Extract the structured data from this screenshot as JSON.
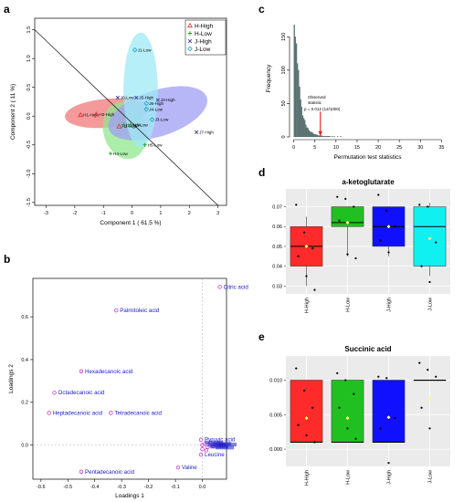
{
  "panel_letters": {
    "a": "a",
    "b": "b",
    "c": "c",
    "d": "d",
    "e": "e"
  },
  "chart_data": [
    {
      "panel": "a",
      "type": "scatter",
      "title": "",
      "xlabel": "Component 1 ( 61.5 %)",
      "ylabel": "Component 2 ( 11 %)",
      "xlim": [
        -3.4,
        3.3
      ],
      "ylim": [
        -1.55,
        1.7
      ],
      "xticks": [
        -3,
        -2,
        -1,
        0,
        1,
        2,
        3
      ],
      "yticks": [
        -1.5,
        -1.0,
        -0.5,
        0.0,
        0.5,
        1.0,
        1.5
      ],
      "legend_position": "top-right",
      "diagonal_line": [
        [
          -3.4,
          1.5
        ],
        [
          3.0,
          -1.55
        ]
      ],
      "ellipses": [
        {
          "group": "H-High",
          "color": "#f07878",
          "cx": -0.9,
          "cy": 0.05,
          "rx": 1.45,
          "ry": 0.25,
          "angle": -5
        },
        {
          "group": "H-Low",
          "color": "#8ee88e",
          "cx": -0.25,
          "cy": -0.25,
          "rx": 0.75,
          "ry": 0.5,
          "angle": -15
        },
        {
          "group": "J-High",
          "color": "#9f9ff5",
          "cx": 0.9,
          "cy": 0.05,
          "rx": 1.8,
          "ry": 0.4,
          "angle": -18
        },
        {
          "group": "J-Low",
          "color": "#9fe9f5",
          "cx": 0.3,
          "cy": 0.45,
          "rx": 0.6,
          "ry": 1.0,
          "angle": 0
        }
      ],
      "series": [
        {
          "name": "H-High",
          "marker": "triangle",
          "color": "#e03030",
          "points": [
            {
              "x": -1.8,
              "y": 0.02,
              "label": "H1-High"
            },
            {
              "x": -1.25,
              "y": 0.03,
              "label": "H2-High"
            },
            {
              "x": -0.45,
              "y": -0.18,
              "label": "H3-High"
            }
          ]
        },
        {
          "name": "H-Low",
          "marker": "plus",
          "color": "#20a020",
          "points": [
            {
              "x": -0.3,
              "y": -0.15,
              "label": "H1-Low"
            },
            {
              "x": -0.05,
              "y": -0.15,
              "label": "H3-Low"
            },
            {
              "x": -0.75,
              "y": -0.65,
              "label": "H4-Low"
            },
            {
              "x": 0.45,
              "y": -0.5,
              "label": "H5-Low"
            }
          ]
        },
        {
          "name": "J-High",
          "marker": "cross",
          "color": "#3a3a9a",
          "points": [
            {
              "x": -0.5,
              "y": 0.32,
              "label": "J6-Low"
            },
            {
              "x": 0.15,
              "y": 0.32,
              "label": "J5-High"
            },
            {
              "x": 0.9,
              "y": 0.28,
              "label": "J3-High"
            },
            {
              "x": 2.25,
              "y": -0.28,
              "label": "J7-High"
            }
          ]
        },
        {
          "name": "J-Low",
          "marker": "diamond",
          "color": "#20a0c0",
          "points": [
            {
              "x": 0.1,
              "y": 1.15,
              "label": "J1-Low"
            },
            {
              "x": 0.5,
              "y": 0.22,
              "label": "J6-High"
            },
            {
              "x": 0.5,
              "y": 0.12,
              "label": "J4-Low"
            },
            {
              "x": 0.7,
              "y": -0.06,
              "label": "J3-Low"
            }
          ]
        }
      ],
      "legend": [
        "H-High",
        "H-Low",
        "J-High",
        "J-Low"
      ]
    },
    {
      "panel": "b",
      "type": "scatter",
      "title": "",
      "xlabel": "Loadings 1",
      "ylabel": "Loadings 2",
      "xlim": [
        -0.63,
        0.09
      ],
      "ylim": [
        -0.16,
        0.78
      ],
      "xticks": [
        -0.6,
        -0.5,
        -0.4,
        -0.3,
        -0.2,
        -0.1,
        0.0
      ],
      "yticks": [
        0.0,
        0.2,
        0.4,
        0.6
      ],
      "points": [
        {
          "x": 0.065,
          "y": 0.74,
          "label": "Citric acid"
        },
        {
          "x": -0.32,
          "y": 0.63,
          "label": "Palmitoleic acid"
        },
        {
          "x": -0.45,
          "y": 0.345,
          "label": "Hexadecanoic acid"
        },
        {
          "x": -0.55,
          "y": 0.245,
          "label": "Octadecanoic acid"
        },
        {
          "x": -0.57,
          "y": 0.15,
          "label": "Heptadecanoic acid"
        },
        {
          "x": -0.34,
          "y": 0.15,
          "label": "Tetradecanoic acid"
        },
        {
          "x": -0.45,
          "y": -0.125,
          "label": "Pentadecanoic acid"
        },
        {
          "x": -0.09,
          "y": -0.105,
          "label": "Valine"
        },
        {
          "x": -0.005,
          "y": 0.025,
          "label": "Pyruvic acid"
        },
        {
          "x": -0.005,
          "y": -0.045,
          "label": "Leucine"
        },
        {
          "x": 0.0,
          "y": 0.0,
          "label": ""
        },
        {
          "x": 0.01,
          "y": 0.005,
          "label": ""
        },
        {
          "x": 0.02,
          "y": -0.01,
          "label": ""
        },
        {
          "x": 0.03,
          "y": 0.01,
          "label": ""
        },
        {
          "x": 0.04,
          "y": -0.005,
          "label": ""
        },
        {
          "x": 0.05,
          "y": 0.0,
          "label": ""
        },
        {
          "x": 0.06,
          "y": 0.008,
          "label": ""
        },
        {
          "x": 0.07,
          "y": -0.004,
          "label": ""
        },
        {
          "x": 0.015,
          "y": -0.025,
          "label": ""
        },
        {
          "x": 0.0,
          "y": -0.02,
          "label": ""
        }
      ]
    },
    {
      "panel": "c",
      "type": "bar",
      "title": "",
      "xlabel": "Permutation test statistics",
      "ylabel": "Frequency",
      "xlim": [
        -1,
        36
      ],
      "ylim": [
        0,
        175
      ],
      "xticks": [
        0,
        5,
        10,
        15,
        20,
        25,
        30,
        35
      ],
      "yticks": [
        0,
        50,
        100,
        150
      ],
      "bin_width": 0.25,
      "bin_start": 0.0,
      "frequencies": [
        168,
        150,
        140,
        110,
        100,
        75,
        56,
        45,
        32,
        28,
        25,
        18,
        14,
        13,
        10,
        8,
        7,
        7,
        5,
        4,
        4,
        3,
        3,
        2,
        2,
        2,
        2,
        1,
        1,
        1,
        1,
        1,
        1,
        1,
        1,
        0,
        1,
        0,
        1,
        0,
        0,
        1,
        0,
        0,
        1
      ],
      "observed_value": 6.3,
      "annotation": {
        "line1": "Observed",
        "line2": "statistic",
        "line3": "p = 0.012 (12/1000)"
      }
    },
    {
      "panel": "d",
      "type": "box",
      "title": "a-ketoglutarate",
      "xlabel": "",
      "ylabel": "",
      "ylim": [
        0.026,
        0.079
      ],
      "yticks": [
        0.03,
        0.04,
        0.05,
        0.06,
        0.07
      ],
      "ytick_labels": [
        "0.03",
        "0.04",
        "0.05",
        "0.06",
        "0.07"
      ],
      "categories": [
        "H-High",
        "H-Low",
        "J-High",
        "J-Low"
      ],
      "boxes": [
        {
          "name": "H-High",
          "color": "#ff2a2a",
          "q1": 0.04,
          "median": 0.05,
          "q3": 0.06,
          "whisker_low": 0.03,
          "whisker_high": 0.065,
          "mean": 0.05,
          "points": [
            0.071,
            0.057,
            0.049,
            0.045,
            0.035,
            0.028
          ]
        },
        {
          "name": "H-Low",
          "color": "#20c020",
          "q1": 0.06,
          "median": 0.062,
          "q3": 0.07,
          "whisker_low": 0.045,
          "whisker_high": 0.07,
          "mean": 0.062,
          "points": [
            0.075,
            0.074,
            0.07,
            0.063,
            0.046,
            0.044
          ]
        },
        {
          "name": "J-High",
          "color": "#1010ff",
          "q1": 0.05,
          "median": 0.06,
          "q3": 0.07,
          "whisker_low": 0.045,
          "whisker_high": 0.07,
          "mean": 0.06,
          "points": [
            0.076,
            0.068,
            0.06,
            0.053,
            0.047
          ]
        },
        {
          "name": "J-Low",
          "color": "#10f0f0",
          "q1": 0.04,
          "median": 0.06,
          "q3": 0.07,
          "whisker_low": 0.035,
          "whisker_high": 0.072,
          "mean": 0.054,
          "points": [
            0.071,
            0.07,
            0.052,
            0.04,
            0.032
          ]
        }
      ]
    },
    {
      "panel": "e",
      "type": "box",
      "title": "Succinic acid",
      "xlabel": "",
      "ylabel": "",
      "ylim": [
        -0.0025,
        0.0135
      ],
      "yticks": [
        0.0,
        0.005,
        0.01
      ],
      "ytick_labels": [
        "0.000",
        "0.005",
        "0.010"
      ],
      "categories": [
        "H-High",
        "H-Low",
        "J-High",
        "J-Low"
      ],
      "boxes": [
        {
          "name": "H-High",
          "color": "#ff2a2a",
          "q1": 0.001,
          "median": 0.001,
          "q3": 0.01,
          "whisker_low": 0.001,
          "whisker_high": 0.01,
          "mean": 0.0045,
          "points": [
            0.0117,
            0.0085,
            0.006,
            0.0035,
            0.002,
            0.001
          ]
        },
        {
          "name": "H-Low",
          "color": "#20c020",
          "q1": 0.001,
          "median": 0.001,
          "q3": 0.01,
          "whisker_low": 0.001,
          "whisker_high": 0.01,
          "mean": 0.0045,
          "points": [
            0.011,
            0.01,
            0.008,
            0.006,
            0.003,
            0.0015
          ]
        },
        {
          "name": "J-High",
          "color": "#1010ff",
          "q1": 0.001,
          "median": 0.001,
          "q3": 0.01,
          "whisker_low": 0.001,
          "whisker_high": 0.01,
          "mean": 0.0046,
          "points": [
            0.0105,
            0.0103,
            0.0045,
            0.003,
            -0.002
          ]
        },
        {
          "name": "J-Low",
          "color": "#10f0f0",
          "q1": 0.01,
          "median": 0.01,
          "q3": 0.01,
          "whisker_low": 0.01,
          "whisker_high": 0.01,
          "mean": 0.0072,
          "points": [
            0.0125,
            0.0115,
            0.0105,
            0.006,
            0.003
          ]
        }
      ]
    }
  ]
}
